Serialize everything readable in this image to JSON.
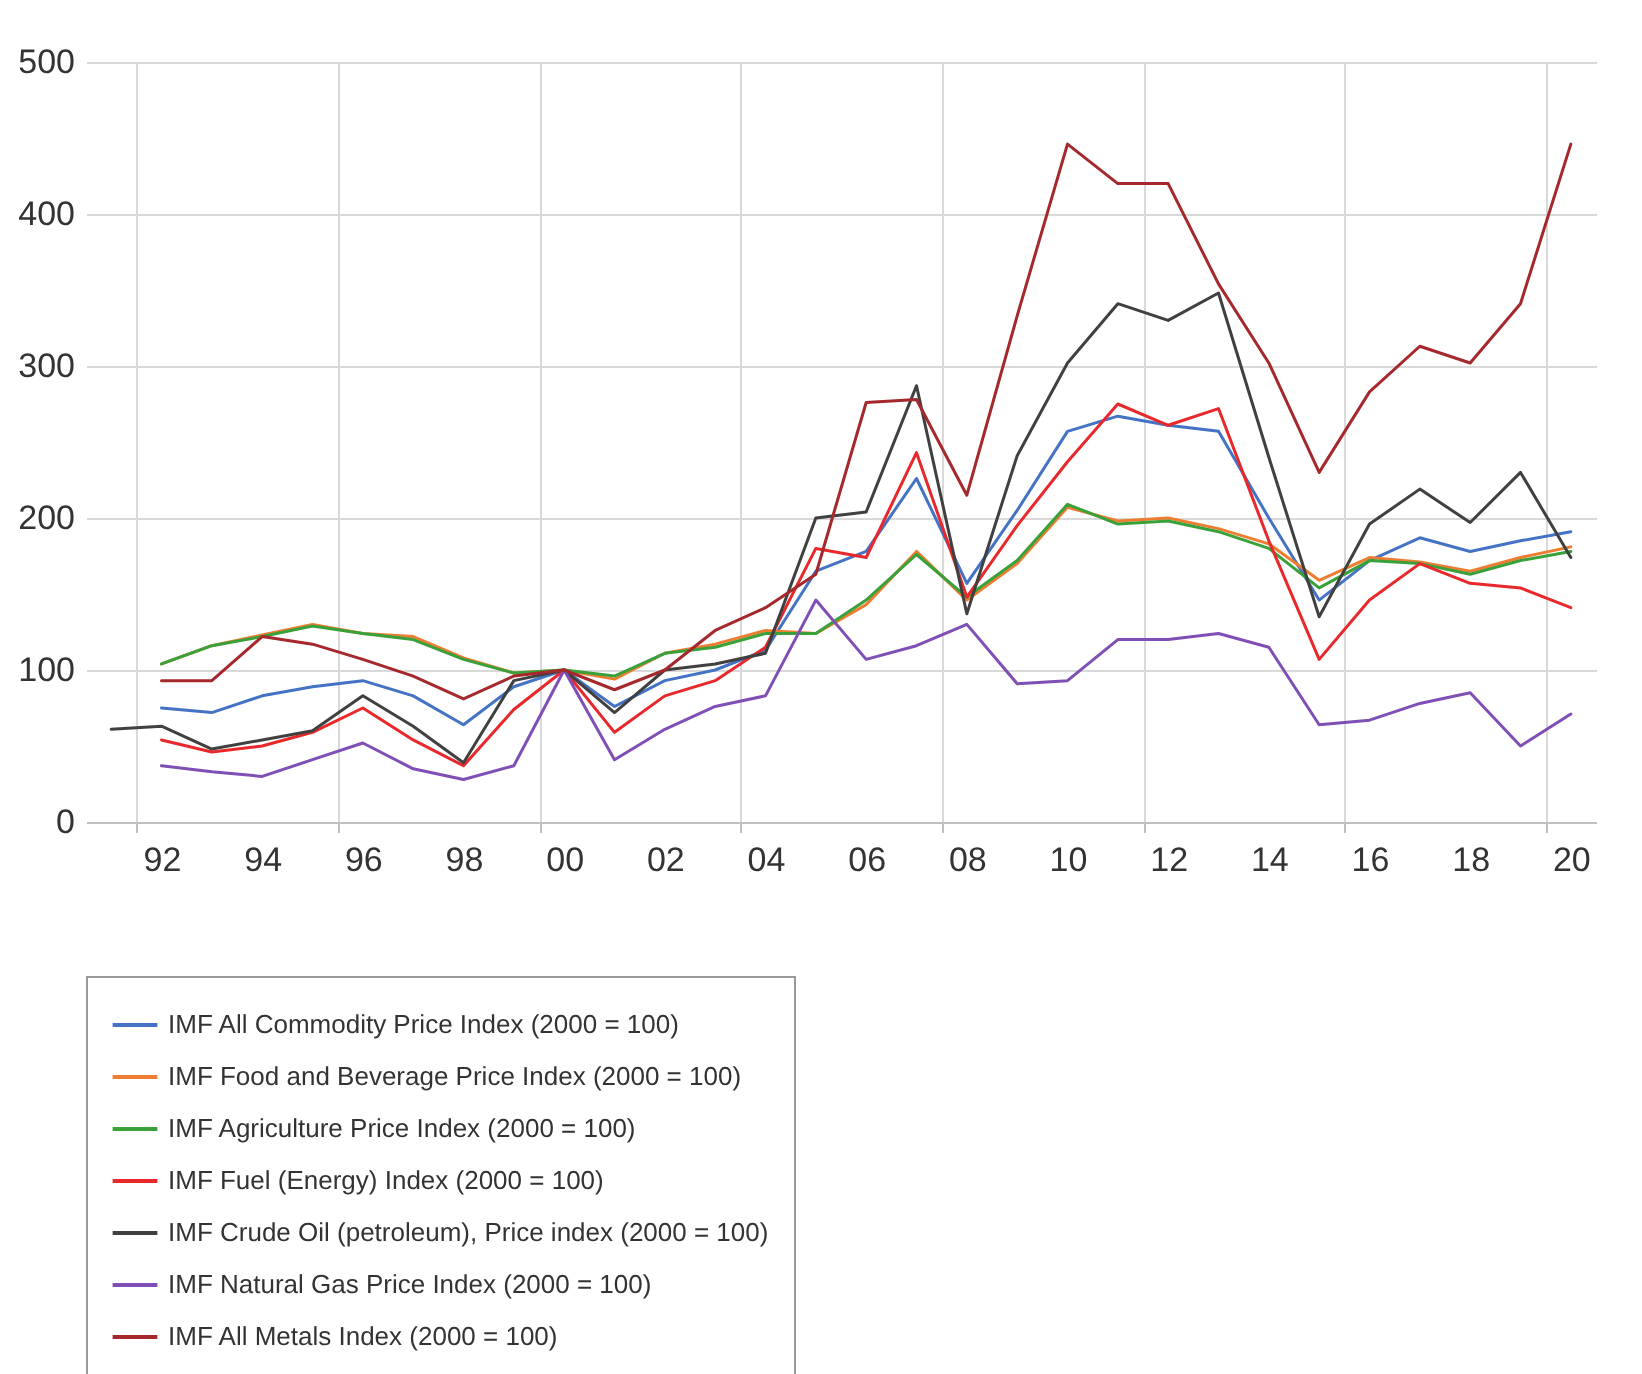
{
  "chart_data": {
    "type": "line",
    "x": [
      1991,
      1992,
      1993,
      1994,
      1995,
      1996,
      1997,
      1998,
      1999,
      2000,
      2001,
      2002,
      2003,
      2004,
      2005,
      2006,
      2007,
      2008,
      2009,
      2010,
      2011,
      2012,
      2013,
      2014,
      2015,
      2016,
      2017,
      2018,
      2019,
      2020
    ],
    "series": [
      {
        "name": "IMF All Commodity Price Index (2000 = 100)",
        "color": "#4472c4",
        "values": [
          null,
          75,
          72,
          83,
          89,
          93,
          83,
          64,
          89,
          100,
          76,
          93,
          100,
          113,
          165,
          178,
          226,
          157,
          205,
          257,
          267,
          261,
          257,
          200,
          146,
          172,
          187,
          178,
          185,
          191
        ]
      },
      {
        "name": "IMF Food and Beverage Price Index (2000 = 100)",
        "color": "#ed7d31",
        "values": [
          null,
          104,
          116,
          123,
          130,
          124,
          122,
          108,
          98,
          100,
          94,
          111,
          117,
          126,
          124,
          143,
          178,
          146,
          170,
          207,
          198,
          200,
          193,
          183,
          159,
          174,
          171,
          165,
          174,
          181
        ]
      },
      {
        "name": "IMF Agriculture Price Index (2000 = 100)",
        "color": "#3aa13a",
        "values": [
          null,
          104,
          116,
          122,
          129,
          124,
          120,
          107,
          98,
          100,
          96,
          111,
          115,
          124,
          124,
          146,
          176,
          148,
          172,
          209,
          196,
          198,
          191,
          180,
          154,
          172,
          170,
          163,
          172,
          178
        ]
      },
      {
        "name": "IMF Fuel (Energy) Index (2000 = 100)",
        "color": "#e8282b",
        "values": [
          null,
          54,
          46,
          50,
          59,
          75,
          54,
          37,
          74,
          100,
          59,
          83,
          93,
          115,
          180,
          174,
          243,
          148,
          195,
          237,
          275,
          261,
          272,
          185,
          107,
          146,
          170,
          157,
          154,
          141
        ]
      },
      {
        "name": "IMF Crude Oil (petroleum), Price index (2000 = 100)",
        "color": "#404040",
        "values": [
          61,
          63,
          48,
          54,
          60,
          83,
          63,
          39,
          93,
          100,
          72,
          100,
          104,
          111,
          200,
          204,
          287,
          137,
          241,
          302,
          341,
          330,
          348,
          240,
          135,
          196,
          219,
          197,
          230,
          174
        ]
      },
      {
        "name": "IMF Natural Gas Price Index (2000 = 100)",
        "color": "#7f4fb5",
        "values": [
          null,
          37,
          33,
          30,
          41,
          52,
          35,
          28,
          37,
          100,
          41,
          61,
          76,
          83,
          146,
          107,
          116,
          130,
          91,
          93,
          120,
          120,
          124,
          115,
          64,
          67,
          78,
          85,
          50,
          71
        ]
      },
      {
        "name": "IMF All Metals Index (2000 = 100)",
        "color": "#a5282c",
        "values": [
          null,
          93,
          93,
          122,
          117,
          107,
          96,
          81,
          96,
          100,
          87,
          100,
          126,
          141,
          163,
          276,
          278,
          215,
          333,
          446,
          420,
          420,
          354,
          302,
          230,
          283,
          313,
          302,
          341,
          446
        ]
      }
    ],
    "xlim": [
      1990.5,
      2020.5
    ],
    "xticks": [
      {
        "value": 1991.5,
        "label": null
      },
      {
        "value": 1992,
        "label": "92"
      },
      {
        "value": 1994,
        "label": "94"
      },
      {
        "value": 1995.5,
        "label": null
      },
      {
        "value": 1996,
        "label": "96"
      },
      {
        "value": 1998,
        "label": "98"
      },
      {
        "value": 1999.5,
        "label": null
      },
      {
        "value": 2000,
        "label": "00"
      },
      {
        "value": 2002,
        "label": "02"
      },
      {
        "value": 2003.5,
        "label": null
      },
      {
        "value": 2004,
        "label": "04"
      },
      {
        "value": 2006,
        "label": "06"
      },
      {
        "value": 2007.5,
        "label": null
      },
      {
        "value": 2008,
        "label": "08"
      },
      {
        "value": 2010,
        "label": "10"
      },
      {
        "value": 2011.5,
        "label": null
      },
      {
        "value": 2012,
        "label": "12"
      },
      {
        "value": 2014,
        "label": "14"
      },
      {
        "value": 2015.5,
        "label": null
      },
      {
        "value": 2016,
        "label": "16"
      },
      {
        "value": 2018,
        "label": "18"
      },
      {
        "value": 2019.5,
        "label": null
      },
      {
        "value": 2020,
        "label": "20"
      }
    ],
    "ylim": [
      0,
      500
    ],
    "yticks": [
      0,
      100,
      200,
      300,
      400,
      500
    ],
    "grid": true,
    "legend": "bottom",
    "marker": "none",
    "line_style": "solid"
  }
}
